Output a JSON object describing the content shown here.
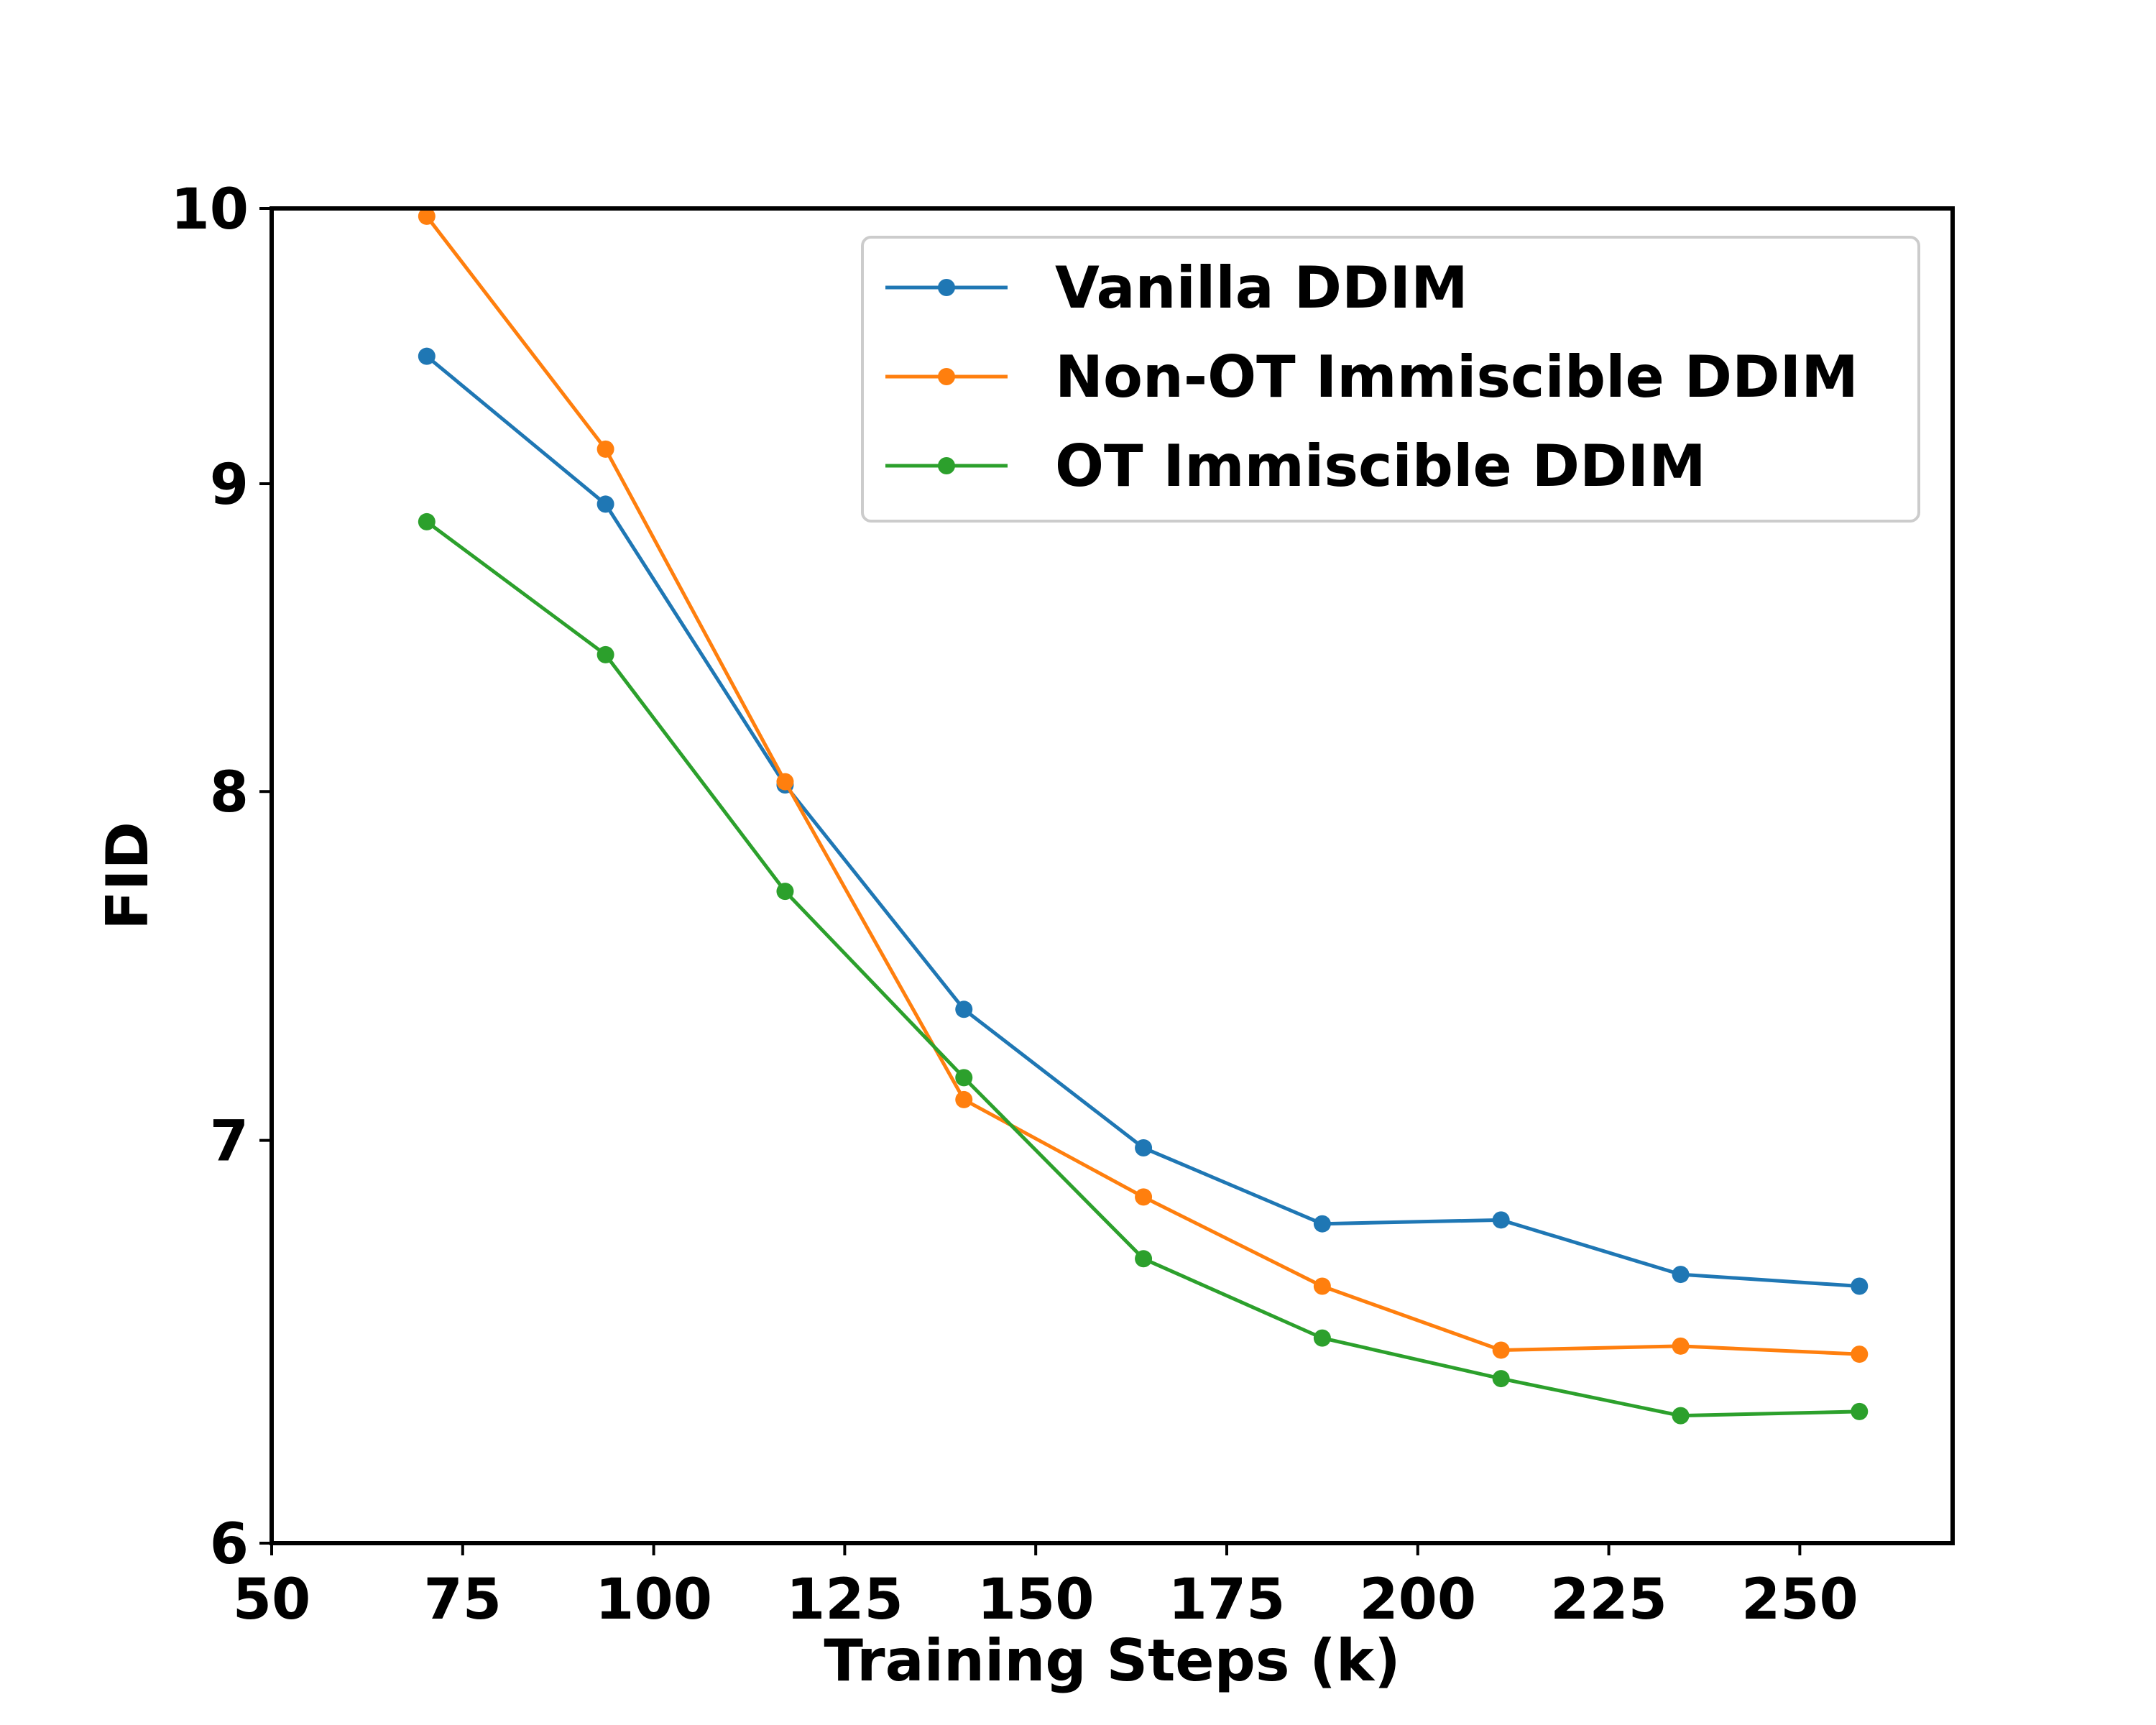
{
  "chart_data": {
    "type": "line",
    "title": "",
    "xlabel": "Training Steps (k)",
    "ylabel": "FID",
    "xlim": [
      50,
      270
    ],
    "ylim": [
      6,
      10
    ],
    "y_scale": "log",
    "xticks": [
      50,
      75,
      100,
      125,
      150,
      175,
      200,
      225,
      250
    ],
    "xtick_labels": [
      "50",
      "75",
      "100",
      "125",
      "150",
      "175",
      "200",
      "225",
      "250"
    ],
    "yticks": [
      6,
      7,
      8,
      9,
      10
    ],
    "ytick_labels": [
      "6",
      "7",
      "8",
      "9",
      "10"
    ],
    "grid": false,
    "legend_position": "upper-right",
    "x": [
      70.3,
      93.7,
      117.2,
      140.6,
      164.1,
      187.5,
      210.9,
      234.4,
      257.8
    ],
    "series": [
      {
        "name": "Vanilla DDIM",
        "color": "#1f77b4",
        "values": [
          9.45,
          8.93,
          8.02,
          7.36,
          6.98,
          6.78,
          6.79,
          6.65,
          6.62
        ]
      },
      {
        "name": "Non-OT Immiscible DDIM",
        "color": "#ff7f0e",
        "values": [
          9.97,
          9.12,
          8.03,
          7.11,
          6.85,
          6.62,
          6.46,
          6.47,
          6.45
        ]
      },
      {
        "name": "OT Immiscible DDIM",
        "color": "#2ca02c",
        "values": [
          8.87,
          8.43,
          7.7,
          7.17,
          6.69,
          6.49,
          6.39,
          6.3,
          6.31
        ]
      }
    ]
  }
}
